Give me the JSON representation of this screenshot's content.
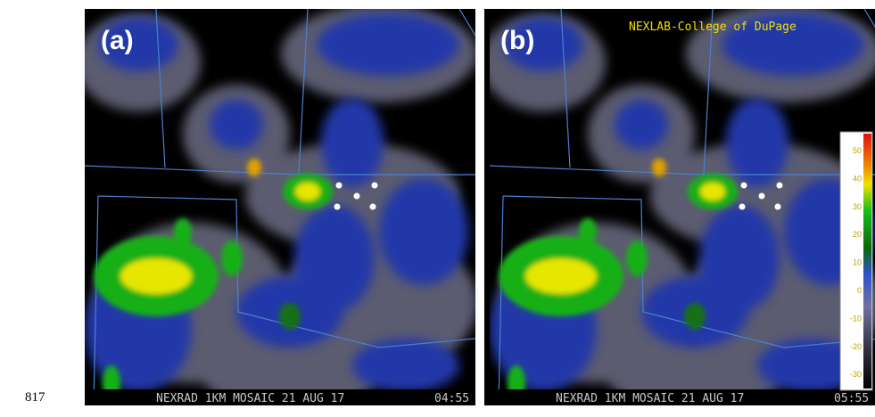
{
  "page_number": "817",
  "panels": [
    {
      "label": "(a)",
      "caption": "NEXRAD 1KM MOSAIC 21 AUG 17",
      "time": "04:55"
    },
    {
      "label": "(b)",
      "caption": "NEXRAD 1KM MOSAIC 21 AUG 17",
      "time": "05:55",
      "watermark": "NEXLAB-College of DuPage"
    }
  ],
  "colorbar": {
    "ticks": [
      50,
      40,
      30,
      20,
      10,
      0,
      -10,
      -20,
      -30
    ]
  }
}
